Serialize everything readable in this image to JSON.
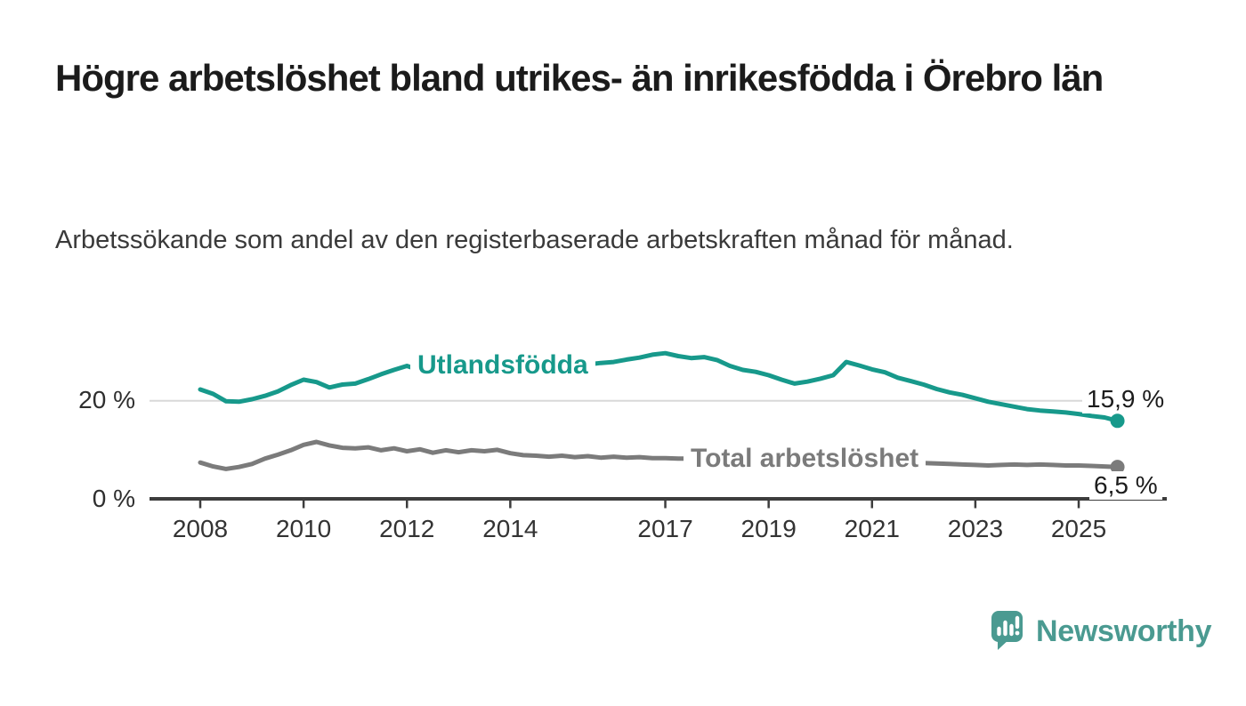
{
  "header": {
    "title": "Högre arbetslöshet bland utrikes- än inrikesfödda i Örebro län",
    "subtitle": "Arbetssökande som andel av den registerbaserade arbetskraften månad för månad."
  },
  "branding": {
    "name": "Newsworthy",
    "color": "#4a9a91"
  },
  "chart_data": {
    "type": "line",
    "title": "Högre arbetslöshet bland utrikes- än inrikesfödda i Örebro län",
    "subtitle": "Arbetssökande som andel av den registerbaserade arbetskraften månad för månad.",
    "unit": "%",
    "grid": "horizontal-20-only",
    "legend_position": "inline-on-line",
    "x_axis": {
      "range": [
        2008,
        2025.9
      ],
      "ticks": [
        {
          "year": 2008,
          "label": "2008"
        },
        {
          "year": 2010,
          "label": "2010"
        },
        {
          "year": 2012,
          "label": "2012"
        },
        {
          "year": 2014,
          "label": "2014"
        },
        {
          "year": 2017,
          "label": "2017"
        },
        {
          "year": 2019,
          "label": "2019"
        },
        {
          "year": 2021,
          "label": "2021"
        },
        {
          "year": 2023,
          "label": "2023"
        },
        {
          "year": 2025,
          "label": "2025"
        }
      ]
    },
    "y_axis": {
      "range": [
        0,
        31
      ],
      "ticks": [
        {
          "value": 0,
          "label": "0 %"
        },
        {
          "value": 20,
          "label": "20 %"
        }
      ]
    },
    "series": [
      {
        "name": "Utlandsfödda",
        "color": "#17998b",
        "end_label": "15,9 %",
        "end_value": 15.9,
        "points": [
          [
            2008.0,
            22.3
          ],
          [
            2008.25,
            21.4
          ],
          [
            2008.5,
            19.9
          ],
          [
            2008.75,
            19.8
          ],
          [
            2009.0,
            20.3
          ],
          [
            2009.25,
            21.0
          ],
          [
            2009.5,
            21.9
          ],
          [
            2009.75,
            23.2
          ],
          [
            2010.0,
            24.3
          ],
          [
            2010.25,
            23.8
          ],
          [
            2010.5,
            22.7
          ],
          [
            2010.75,
            23.3
          ],
          [
            2011.0,
            23.5
          ],
          [
            2011.25,
            24.4
          ],
          [
            2011.5,
            25.4
          ],
          [
            2011.75,
            26.3
          ],
          [
            2012.0,
            27.1
          ],
          [
            2012.25,
            26.2
          ],
          [
            2012.5,
            25.8
          ],
          [
            2012.75,
            26.0
          ],
          [
            2013.0,
            26.2
          ],
          [
            2013.25,
            26.4
          ],
          [
            2013.5,
            26.6
          ],
          [
            2013.75,
            26.8
          ],
          [
            2014.0,
            27.0
          ],
          [
            2014.25,
            26.8
          ],
          [
            2014.5,
            27.0
          ],
          [
            2014.75,
            27.2
          ],
          [
            2015.0,
            27.3
          ],
          [
            2015.25,
            27.2
          ],
          [
            2015.5,
            27.4
          ],
          [
            2015.75,
            27.7
          ],
          [
            2016.0,
            27.9
          ],
          [
            2016.25,
            28.4
          ],
          [
            2016.5,
            28.8
          ],
          [
            2016.75,
            29.4
          ],
          [
            2017.0,
            29.7
          ],
          [
            2017.25,
            29.1
          ],
          [
            2017.5,
            28.7
          ],
          [
            2017.75,
            28.9
          ],
          [
            2018.0,
            28.3
          ],
          [
            2018.25,
            27.1
          ],
          [
            2018.5,
            26.3
          ],
          [
            2018.75,
            25.9
          ],
          [
            2019.0,
            25.2
          ],
          [
            2019.25,
            24.3
          ],
          [
            2019.5,
            23.5
          ],
          [
            2019.75,
            23.9
          ],
          [
            2020.0,
            24.5
          ],
          [
            2020.25,
            25.2
          ],
          [
            2020.5,
            27.9
          ],
          [
            2020.75,
            27.2
          ],
          [
            2021.0,
            26.4
          ],
          [
            2021.25,
            25.8
          ],
          [
            2021.5,
            24.7
          ],
          [
            2021.75,
            24.0
          ],
          [
            2022.0,
            23.3
          ],
          [
            2022.25,
            22.4
          ],
          [
            2022.5,
            21.7
          ],
          [
            2022.75,
            21.2
          ],
          [
            2023.0,
            20.5
          ],
          [
            2023.25,
            19.8
          ],
          [
            2023.5,
            19.3
          ],
          [
            2023.75,
            18.8
          ],
          [
            2024.0,
            18.3
          ],
          [
            2024.25,
            18.0
          ],
          [
            2024.5,
            17.8
          ],
          [
            2024.75,
            17.6
          ],
          [
            2025.0,
            17.3
          ],
          [
            2025.25,
            16.9
          ],
          [
            2025.5,
            16.6
          ],
          [
            2025.75,
            15.9
          ]
        ]
      },
      {
        "name": "Total arbetslöshet",
        "color": "#7b7b7b",
        "end_label": "6,5 %",
        "end_value": 6.5,
        "points": [
          [
            2008.0,
            7.4
          ],
          [
            2008.25,
            6.6
          ],
          [
            2008.5,
            6.1
          ],
          [
            2008.75,
            6.5
          ],
          [
            2009.0,
            7.1
          ],
          [
            2009.25,
            8.2
          ],
          [
            2009.5,
            9.0
          ],
          [
            2009.75,
            9.9
          ],
          [
            2010.0,
            11.0
          ],
          [
            2010.25,
            11.6
          ],
          [
            2010.5,
            10.9
          ],
          [
            2010.75,
            10.4
          ],
          [
            2011.0,
            10.3
          ],
          [
            2011.25,
            10.5
          ],
          [
            2011.5,
            9.9
          ],
          [
            2011.75,
            10.3
          ],
          [
            2012.0,
            9.7
          ],
          [
            2012.25,
            10.1
          ],
          [
            2012.5,
            9.4
          ],
          [
            2012.75,
            9.9
          ],
          [
            2013.0,
            9.5
          ],
          [
            2013.25,
            9.9
          ],
          [
            2013.5,
            9.7
          ],
          [
            2013.75,
            10.0
          ],
          [
            2014.0,
            9.3
          ],
          [
            2014.25,
            8.9
          ],
          [
            2014.5,
            8.8
          ],
          [
            2014.75,
            8.6
          ],
          [
            2015.0,
            8.8
          ],
          [
            2015.25,
            8.5
          ],
          [
            2015.5,
            8.7
          ],
          [
            2015.75,
            8.4
          ],
          [
            2016.0,
            8.6
          ],
          [
            2016.25,
            8.4
          ],
          [
            2016.5,
            8.5
          ],
          [
            2016.75,
            8.3
          ],
          [
            2017.0,
            8.3
          ],
          [
            2017.25,
            8.2
          ],
          [
            2017.5,
            8.2
          ],
          [
            2017.75,
            8.1
          ],
          [
            2018.0,
            7.9
          ],
          [
            2018.25,
            7.7
          ],
          [
            2018.5,
            7.6
          ],
          [
            2018.75,
            7.5
          ],
          [
            2019.0,
            7.4
          ],
          [
            2019.25,
            7.3
          ],
          [
            2019.5,
            7.4
          ],
          [
            2019.75,
            7.5
          ],
          [
            2020.0,
            7.8
          ],
          [
            2020.25,
            8.8
          ],
          [
            2020.5,
            9.0
          ],
          [
            2020.75,
            8.7
          ],
          [
            2021.0,
            8.4
          ],
          [
            2021.25,
            8.1
          ],
          [
            2021.5,
            7.8
          ],
          [
            2021.75,
            7.5
          ],
          [
            2022.0,
            7.3
          ],
          [
            2022.25,
            7.2
          ],
          [
            2022.5,
            7.1
          ],
          [
            2022.75,
            7.0
          ],
          [
            2023.0,
            6.9
          ],
          [
            2023.25,
            6.8
          ],
          [
            2023.5,
            6.9
          ],
          [
            2023.75,
            7.0
          ],
          [
            2024.0,
            6.9
          ],
          [
            2024.25,
            7.0
          ],
          [
            2024.5,
            6.9
          ],
          [
            2024.75,
            6.8
          ],
          [
            2025.0,
            6.8
          ],
          [
            2025.25,
            6.7
          ],
          [
            2025.5,
            6.6
          ],
          [
            2025.75,
            6.5
          ]
        ]
      }
    ]
  }
}
